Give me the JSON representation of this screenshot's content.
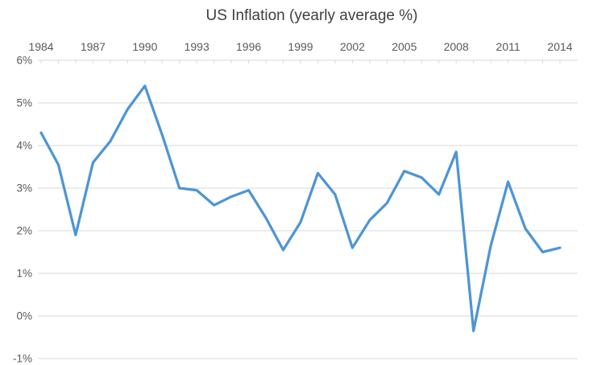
{
  "chart_data": {
    "type": "line",
    "title": "US Inflation (yearly average %)",
    "xlabel": "",
    "ylabel": "",
    "x": [
      1984,
      1985,
      1986,
      1987,
      1988,
      1989,
      1990,
      1991,
      1992,
      1993,
      1994,
      1995,
      1996,
      1997,
      1998,
      1999,
      2000,
      2001,
      2002,
      2003,
      2004,
      2005,
      2006,
      2007,
      2008,
      2009,
      2010,
      2011,
      2012,
      2013,
      2014
    ],
    "values": [
      4.3,
      3.55,
      1.9,
      3.6,
      4.1,
      4.85,
      5.4,
      4.25,
      3.0,
      2.95,
      2.6,
      2.8,
      2.95,
      2.3,
      1.55,
      2.2,
      3.35,
      2.85,
      1.6,
      2.25,
      2.65,
      3.4,
      3.25,
      2.85,
      3.85,
      -0.35,
      1.65,
      3.15,
      2.05,
      1.5,
      1.6
    ],
    "ylim": [
      -1,
      6
    ],
    "xlim": [
      1984,
      2014
    ],
    "x_tick_labels": [
      1984,
      1987,
      1990,
      1993,
      1996,
      1999,
      2002,
      2005,
      2008,
      2011,
      2014
    ],
    "y_ticks": [
      {
        "label": "6%",
        "value": 6
      },
      {
        "label": "5%",
        "value": 5
      },
      {
        "label": "4%",
        "value": 4
      },
      {
        "label": "3%",
        "value": 3
      },
      {
        "label": "2%",
        "value": 2
      },
      {
        "label": "1%",
        "value": 1
      },
      {
        "label": "0%",
        "value": 0
      },
      {
        "label": "-1%",
        "value": -1
      }
    ],
    "grid": "horizontal",
    "legend": "none",
    "x_axis_position": "top",
    "colors": {
      "line": "#4e95d4",
      "grid": "#d9d9d9",
      "tick_label": "#595959",
      "title": "#404040",
      "background": "#ffffff"
    }
  }
}
